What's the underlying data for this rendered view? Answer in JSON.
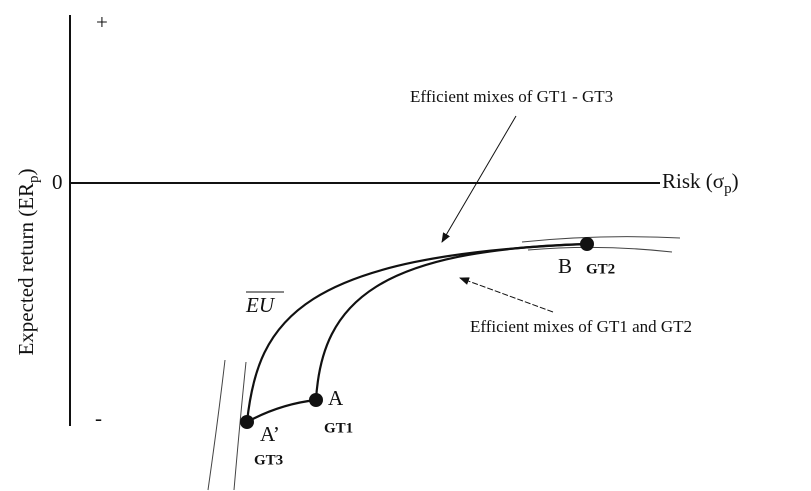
{
  "axes": {
    "plus": "+",
    "minus": "-",
    "zero": "0",
    "x_label": {
      "text": "Risk (σ",
      "subscript": "p",
      "close": ")"
    },
    "y_label": {
      "text": "Expected return (ER",
      "subscript": "p",
      "close": ")"
    }
  },
  "annotations": {
    "upper_curve": "Efficient mixes of GT1 - GT3",
    "lower_curve": "Efficient mixes of GT1 and GT2",
    "utility": "EU"
  },
  "points": [
    {
      "label": "A’",
      "group": "GT3"
    },
    {
      "label": "A",
      "group": "GT1"
    },
    {
      "label": "B",
      "group": "GT2"
    }
  ]
}
